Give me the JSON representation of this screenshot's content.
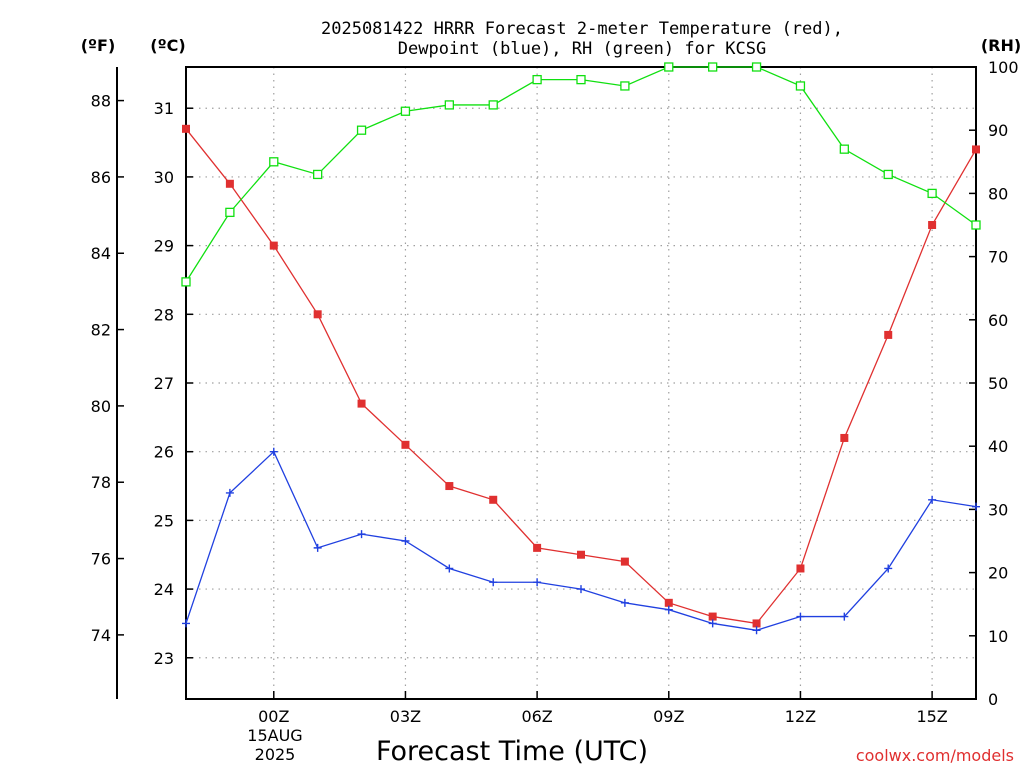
{
  "chart_data": {
    "type": "line",
    "title_line1": "2025081422 HRRR Forecast 2-meter Temperature (red),",
    "title_line2": "Dewpoint (blue), RH (green) for KCSG",
    "xlabel": "Forecast Time (UTC)",
    "credit": "coolwx.com/models",
    "date_label_line1": "15AUG",
    "date_label_line2": "2025",
    "units": {
      "fahrenheit": "(ºF)",
      "celsius": "(ºC)",
      "rh": "(RH)"
    },
    "x": [
      "22Z",
      "23Z",
      "00Z",
      "01Z",
      "02Z",
      "03Z",
      "04Z",
      "05Z",
      "06Z",
      "07Z",
      "08Z",
      "09Z",
      "10Z",
      "11Z",
      "12Z",
      "13Z",
      "14Z",
      "15Z",
      "16Z"
    ],
    "x_tick_labels": [
      {
        "index": 2,
        "label": "00Z"
      },
      {
        "index": 5,
        "label": "03Z"
      },
      {
        "index": 8,
        "label": "06Z"
      },
      {
        "index": 11,
        "label": "09Z"
      },
      {
        "index": 14,
        "label": "12Z"
      },
      {
        "index": 17,
        "label": "15Z"
      }
    ],
    "celsius_axis": {
      "ylim": [
        22.4,
        31.6
      ],
      "ticks": [
        23,
        24,
        25,
        26,
        27,
        28,
        29,
        30,
        31
      ]
    },
    "fahrenheit_axis": {
      "ticks": [
        74,
        76,
        78,
        80,
        82,
        84,
        86,
        88
      ]
    },
    "rh_axis": {
      "ylim": [
        0,
        100
      ],
      "ticks": [
        0,
        10,
        20,
        30,
        40,
        50,
        60,
        70,
        80,
        90,
        100
      ]
    },
    "grid": true,
    "series": [
      {
        "name": "Temperature (red)",
        "axis": "celsius",
        "color": "#e03030",
        "marker": "filled-square",
        "values": [
          30.7,
          29.9,
          29.0,
          28.0,
          26.7,
          26.1,
          25.5,
          25.3,
          24.6,
          24.5,
          24.4,
          23.8,
          23.6,
          23.5,
          24.3,
          26.2,
          27.7,
          29.3,
          30.4
        ]
      },
      {
        "name": "Dewpoint (blue)",
        "axis": "celsius",
        "color": "#2040e0",
        "marker": "plus",
        "values": [
          23.5,
          25.4,
          26.0,
          24.6,
          24.8,
          24.7,
          24.3,
          24.1,
          24.1,
          24.0,
          23.8,
          23.7,
          23.5,
          23.4,
          23.6,
          23.6,
          24.3,
          25.3,
          25.2
        ]
      },
      {
        "name": "RH (green)",
        "axis": "rh",
        "color": "#10e010",
        "marker": "open-square",
        "values": [
          66,
          77,
          85,
          83,
          90,
          93,
          94,
          94,
          98,
          98,
          97,
          100,
          100,
          100,
          97,
          87,
          83,
          80,
          75
        ]
      }
    ]
  }
}
